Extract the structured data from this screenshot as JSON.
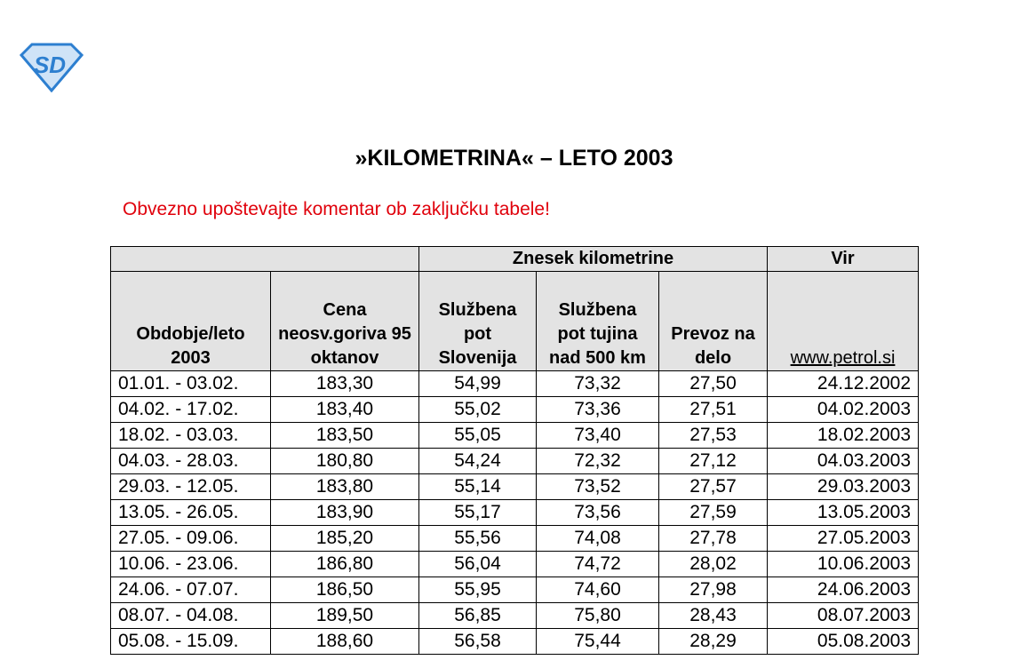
{
  "logo": {
    "text": "SD",
    "color": "#2d7fd0"
  },
  "title": "»KILOMETRINA« – LETO 2003",
  "warning": "Obvezno upoštevajte komentar ob zaključku tabele!",
  "warning_color": "#e0000b",
  "header": {
    "group": "Znesek kilometrine",
    "source": "Vir",
    "cols": [
      "Obdobje/leto 2003",
      "Cena neosv.goriva 95 oktanov",
      "Službena pot Slovenija",
      "Službena pot tujina nad 500 km",
      "Prevoz na delo",
      "www.petrol.si"
    ]
  },
  "rows": [
    [
      "01.01. - 03.02.",
      "183,30",
      "54,99",
      "73,32",
      "27,50",
      "24.12.2002"
    ],
    [
      "04.02. - 17.02.",
      "183,40",
      "55,02",
      "73,36",
      "27,51",
      "04.02.2003"
    ],
    [
      "18.02. - 03.03.",
      "183,50",
      "55,05",
      "73,40",
      "27,53",
      "18.02.2003"
    ],
    [
      "04.03. - 28.03.",
      "180,80",
      "54,24",
      "72,32",
      "27,12",
      "04.03.2003"
    ],
    [
      "29.03. - 12.05.",
      "183,80",
      "55,14",
      "73,52",
      "27,57",
      "29.03.2003"
    ],
    [
      "13.05. - 26.05.",
      "183,90",
      "55,17",
      "73,56",
      "27,59",
      "13.05.2003"
    ],
    [
      "27.05. - 09.06.",
      "185,20",
      "55,56",
      "74,08",
      "27,78",
      "27.05.2003"
    ],
    [
      "10.06. - 23.06.",
      "186,80",
      "56,04",
      "74,72",
      "28,02",
      "10.06.2003"
    ],
    [
      "24.06. - 07.07.",
      "186,50",
      "55,95",
      "74,60",
      "27,98",
      "24.06.2003"
    ],
    [
      "08.07. - 04.08.",
      "189,50",
      "56,85",
      "75,80",
      "28,43",
      "08.07.2003"
    ],
    [
      "05.08. - 15.09.",
      "188,60",
      "56,58",
      "75,44",
      "28,29",
      "05.08.2003"
    ]
  ]
}
